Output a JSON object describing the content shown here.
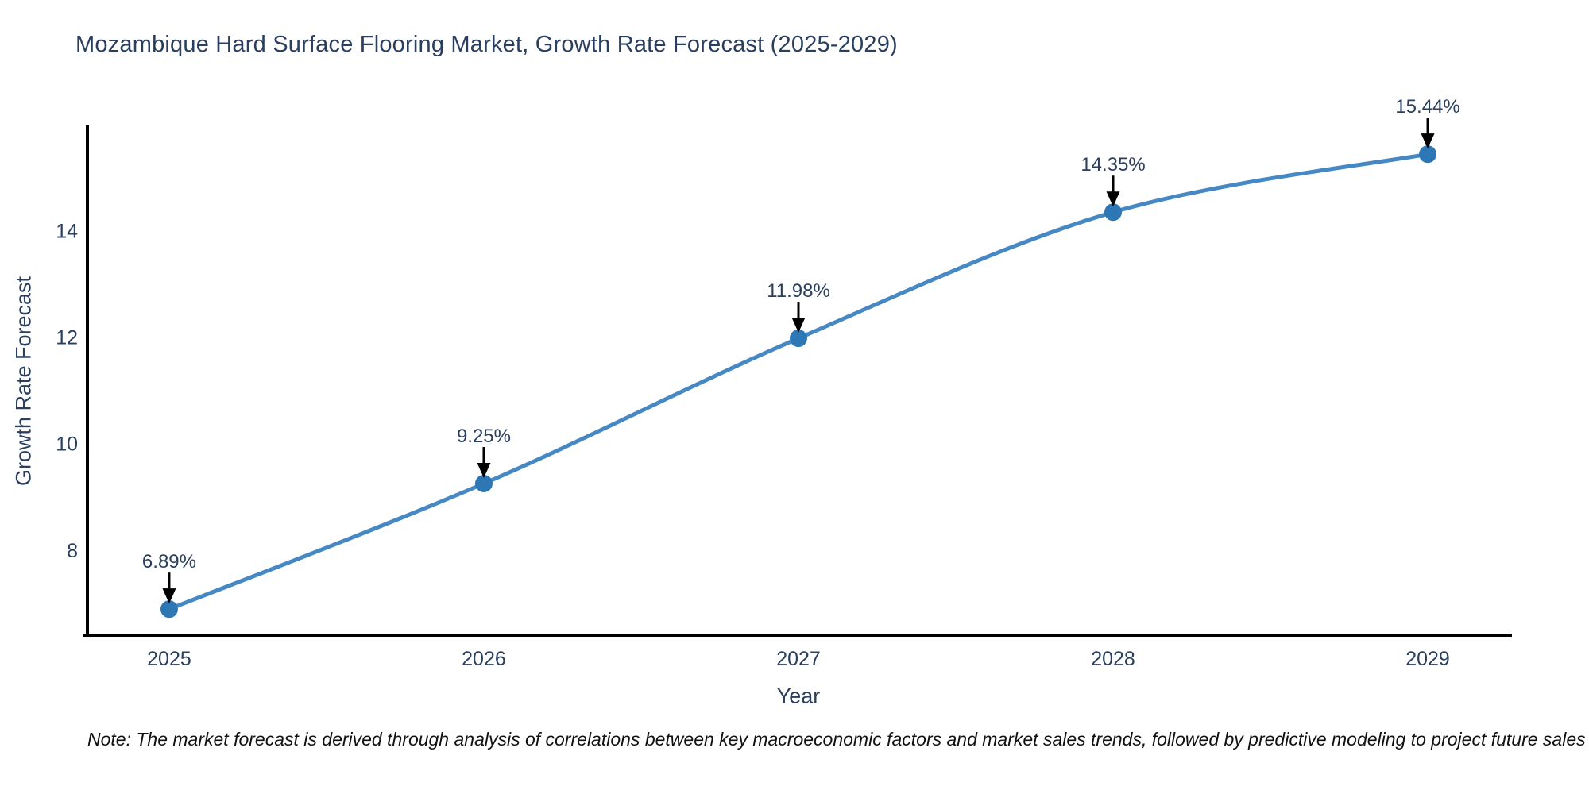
{
  "chart": {
    "title": "Mozambique Hard Surface Flooring Market, Growth Rate Forecast (2025-2029)",
    "xlabel": "Year",
    "ylabel": "Growth Rate Forecast",
    "note": "Note: The market forecast is derived through analysis of correlations between key macroeconomic factors and market sales trends, followed by predictive modeling to project future sales"
  },
  "chart_data": {
    "type": "line",
    "title": "Mozambique Hard Surface Flooring Market, Growth Rate Forecast (2025-2029)",
    "xlabel": "Year",
    "ylabel": "Growth Rate Forecast",
    "x": [
      2025,
      2026,
      2027,
      2028,
      2029
    ],
    "y": [
      6.89,
      9.25,
      11.98,
      14.35,
      15.44
    ],
    "point_labels": [
      "6.89%",
      "9.25%",
      "11.98%",
      "14.35%",
      "15.44%"
    ],
    "xticks": [
      2025,
      2026,
      2027,
      2028,
      2029
    ],
    "yticks": [
      8,
      10,
      12,
      14
    ],
    "xlim": [
      2024.74,
      2029.26
    ],
    "ylim": [
      6.4,
      15.95
    ],
    "grid": false,
    "legend_position": "none",
    "annotation_style": "arrow-down-to-point",
    "colors": {
      "line": "#4688c3",
      "marker": "#2e77b5",
      "text": "#2a3f5f",
      "axis": "#000000",
      "arrow": "#000000",
      "background": "#ffffff"
    }
  }
}
